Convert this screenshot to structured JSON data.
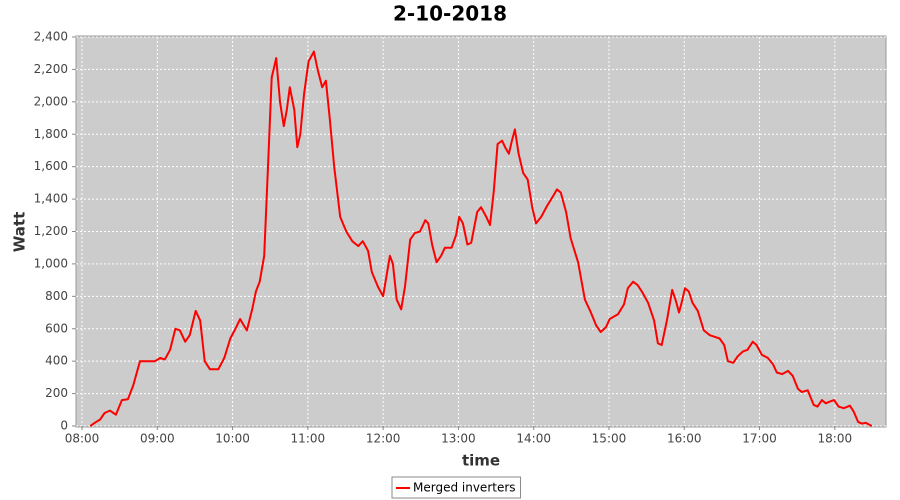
{
  "chart_data": {
    "type": "line",
    "title": "2-10-2018",
    "x_label": "time",
    "y_label": "Watt",
    "x": [
      8.11,
      8.17,
      8.24,
      8.3,
      8.37,
      8.45,
      8.53,
      8.61,
      8.68,
      8.77,
      8.88,
      8.97,
      9.04,
      9.1,
      9.17,
      9.24,
      9.3,
      9.37,
      9.43,
      9.51,
      9.57,
      9.63,
      9.7,
      9.81,
      9.89,
      9.97,
      10.05,
      10.1,
      10.15,
      10.19,
      10.26,
      10.31,
      10.36,
      10.42,
      10.47,
      10.52,
      10.58,
      10.63,
      10.68,
      10.72,
      10.76,
      10.82,
      10.86,
      10.9,
      10.95,
      11.01,
      11.08,
      11.13,
      11.19,
      11.24,
      11.29,
      11.35,
      11.43,
      11.51,
      11.59,
      11.67,
      11.73,
      11.8,
      11.85,
      11.93,
      12.0,
      12.05,
      12.09,
      12.13,
      12.18,
      12.24,
      12.29,
      12.36,
      12.42,
      12.49,
      12.56,
      12.6,
      12.65,
      12.71,
      12.77,
      12.82,
      12.91,
      12.97,
      13.01,
      13.06,
      13.12,
      13.17,
      13.25,
      13.3,
      13.37,
      13.42,
      13.47,
      13.52,
      13.58,
      13.62,
      13.67,
      13.71,
      13.75,
      13.8,
      13.86,
      13.92,
      13.98,
      14.03,
      14.1,
      14.18,
      14.26,
      14.31,
      14.36,
      14.43,
      14.49,
      14.59,
      14.68,
      14.75,
      14.83,
      14.89,
      14.96,
      15.01,
      15.12,
      15.2,
      15.25,
      15.32,
      15.38,
      15.45,
      15.52,
      15.6,
      15.65,
      15.7,
      15.77,
      15.84,
      15.89,
      15.93,
      15.97,
      16.01,
      16.06,
      16.11,
      16.18,
      16.26,
      16.34,
      16.41,
      16.47,
      16.53,
      16.58,
      16.65,
      16.71,
      16.78,
      16.84,
      16.91,
      16.96,
      17.03,
      17.11,
      17.18,
      17.23,
      17.3,
      17.38,
      17.44,
      17.51,
      17.56,
      17.64,
      17.72,
      17.77,
      17.83,
      17.88,
      17.93,
      17.99,
      18.05,
      18.12,
      18.2,
      18.25,
      18.31,
      18.36,
      18.41,
      18.49
    ],
    "series": [
      {
        "name": "Merged inverters",
        "color": "#ff0000",
        "values": [
          0,
          20,
          40,
          80,
          95,
          70,
          160,
          165,
          250,
          400,
          400,
          400,
          420,
          410,
          470,
          600,
          590,
          520,
          560,
          710,
          650,
          400,
          350,
          350,
          420,
          540,
          610,
          660,
          620,
          590,
          720,
          830,
          890,
          1050,
          1600,
          2150,
          2270,
          2000,
          1850,
          1950,
          2090,
          1950,
          1720,
          1800,
          2050,
          2250,
          2310,
          2200,
          2090,
          2130,
          1900,
          1600,
          1290,
          1200,
          1140,
          1110,
          1140,
          1080,
          950,
          860,
          800,
          940,
          1050,
          1000,
          780,
          720,
          860,
          1150,
          1190,
          1200,
          1270,
          1250,
          1120,
          1010,
          1050,
          1100,
          1100,
          1180,
          1290,
          1250,
          1120,
          1130,
          1320,
          1350,
          1290,
          1240,
          1450,
          1740,
          1760,
          1720,
          1680,
          1760,
          1830,
          1680,
          1560,
          1520,
          1350,
          1250,
          1290,
          1360,
          1420,
          1460,
          1440,
          1320,
          1160,
          1010,
          780,
          710,
          620,
          580,
          610,
          660,
          690,
          750,
          850,
          890,
          870,
          820,
          760,
          650,
          510,
          500,
          650,
          840,
          770,
          700,
          770,
          850,
          830,
          760,
          710,
          590,
          560,
          550,
          540,
          500,
          400,
          390,
          430,
          460,
          470,
          520,
          500,
          440,
          420,
          380,
          330,
          320,
          340,
          310,
          230,
          210,
          220,
          130,
          120,
          160,
          140,
          150,
          160,
          120,
          110,
          125,
          90,
          25,
          15,
          20,
          0
        ]
      }
    ],
    "xlim": [
      7.92,
      18.68
    ],
    "xticks": [
      {
        "value": 8,
        "label": "08:00"
      },
      {
        "value": 9,
        "label": "09:00"
      },
      {
        "value": 10,
        "label": "10:00"
      },
      {
        "value": 11,
        "label": "11:00"
      },
      {
        "value": 12,
        "label": "12:00"
      },
      {
        "value": 13,
        "label": "13:00"
      },
      {
        "value": 14,
        "label": "14:00"
      },
      {
        "value": 15,
        "label": "15:00"
      },
      {
        "value": 16,
        "label": "16:00"
      },
      {
        "value": 17,
        "label": "17:00"
      },
      {
        "value": 18,
        "label": "18:00"
      }
    ],
    "ylim": [
      0,
      2400
    ],
    "yticks": [
      0,
      200,
      400,
      600,
      800,
      {
        "value": 1000,
        "label": "1,000"
      },
      {
        "value": 1200,
        "label": "1,200"
      },
      {
        "value": 1400,
        "label": "1,400"
      },
      {
        "value": 1600,
        "label": "1,600"
      },
      {
        "value": 1800,
        "label": "1,800"
      },
      {
        "value": 2000,
        "label": "2,000"
      },
      {
        "value": 2200,
        "label": "2,200"
      },
      {
        "value": 2400,
        "label": "2,400"
      }
    ],
    "grid": true,
    "legend": "bottom"
  }
}
